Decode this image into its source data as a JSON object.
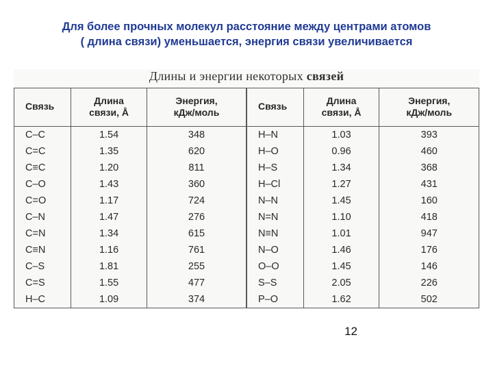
{
  "heading_line1": "Для более прочных молекул расстояние между центрами атомов",
  "heading_line2": "( длина связи) уменьшается, энергия связи увеличивается",
  "caption_plain": "Длины и энергии некоторых ",
  "caption_bold": "связей",
  "page_number": "12",
  "columns": {
    "bond": "Связь",
    "length": "Длина\nсвязи, Å",
    "energy": "Энергия,\nкДж/моль"
  },
  "left": [
    {
      "b": "C–C",
      "l": "1.54",
      "e": "348"
    },
    {
      "b": "C=C",
      "l": "1.35",
      "e": "620"
    },
    {
      "b": "C≡C",
      "l": "1.20",
      "e": "811"
    },
    {
      "b": "C–O",
      "l": "1.43",
      "e": "360"
    },
    {
      "b": "C=O",
      "l": "1.17",
      "e": "724"
    },
    {
      "b": "C–N",
      "l": "1.47",
      "e": "276"
    },
    {
      "b": "C=N",
      "l": "1.34",
      "e": "615"
    },
    {
      "b": "C≡N",
      "l": "1.16",
      "e": "761"
    },
    {
      "b": "C–S",
      "l": "1.81",
      "e": "255"
    },
    {
      "b": "C=S",
      "l": "1.55",
      "e": "477"
    },
    {
      "b": "H–C",
      "l": "1.09",
      "e": "374"
    }
  ],
  "right": [
    {
      "b": "H–N",
      "l": "1.03",
      "e": "393"
    },
    {
      "b": "H–O",
      "l": "0.96",
      "e": "460"
    },
    {
      "b": "H–S",
      "l": "1.34",
      "e": "368"
    },
    {
      "b": "H–Cl",
      "l": "1.27",
      "e": "431"
    },
    {
      "b": "N–N",
      "l": "1.45",
      "e": "160"
    },
    {
      "b": "N=N",
      "l": "1.10",
      "e": "418"
    },
    {
      "b": "N≡N",
      "l": "1.01",
      "e": "947"
    },
    {
      "b": "N–O",
      "l": "1.46",
      "e": "176"
    },
    {
      "b": "O–O",
      "l": "1.45",
      "e": "146"
    },
    {
      "b": "S–S",
      "l": "2.05",
      "e": "226"
    },
    {
      "b": "P–O",
      "l": "1.62",
      "e": "502"
    }
  ],
  "styling": {
    "page_bg": "#ffffff",
    "heading_color": "#1f3a93",
    "heading_fontsize_pt": 13,
    "table_font": "Arial",
    "caption_font": "Times New Roman",
    "caption_fontsize_pt": 14,
    "cell_fontsize_pt": 11,
    "border_color": "#555555",
    "text_color": "#232323",
    "double_separator": true,
    "row_count": 11,
    "col_widths_pct": [
      12,
      16,
      21,
      12,
      16,
      21
    ]
  }
}
